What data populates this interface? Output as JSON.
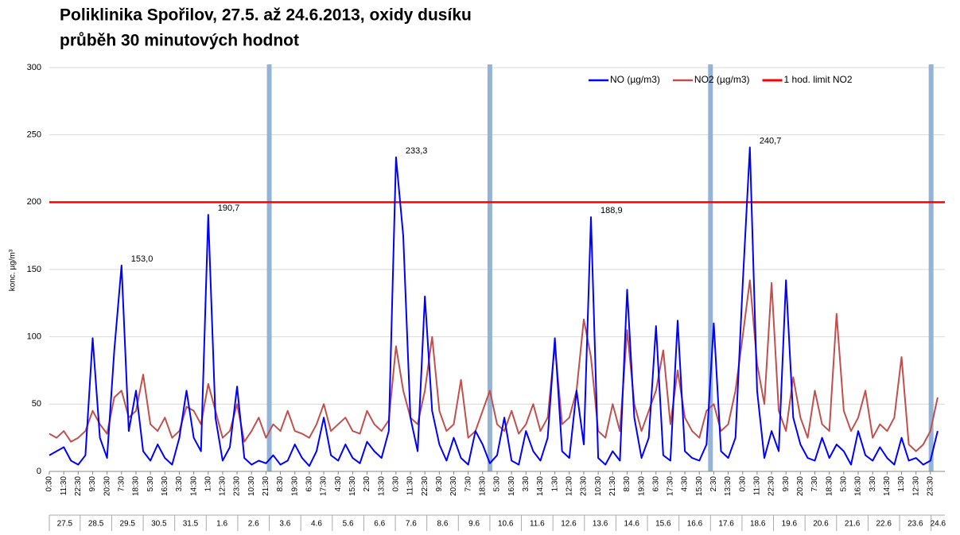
{
  "chart_data": {
    "type": "line",
    "title": "Poliklinika Spořilov, 27.5. až 24.6.2013, oxidy dusíku",
    "subtitle": "průběh 30 minutových hodnot",
    "y_label": "konc. µg/m³",
    "categories": [
      "0:30",
      null,
      "11:30",
      null,
      "22:30",
      null,
      "9:30",
      null,
      "20:30",
      null,
      "7:30",
      null,
      "18:30",
      null,
      "5:30",
      null,
      "16:30",
      null,
      "3:30",
      null,
      "14:30",
      null,
      "1:30",
      null,
      "12:30",
      null,
      "23:30",
      null,
      "10:30",
      null,
      "21:30",
      null,
      "8:30",
      null,
      "19:30",
      null,
      "6:30",
      null,
      "17:30",
      null,
      "4:30",
      null,
      "15:30",
      null,
      "2:30",
      null,
      "13:30",
      null,
      "0:30",
      null,
      "11:30",
      null,
      "22:30",
      null,
      "9:30",
      null,
      "20:30",
      null,
      "7:30",
      null,
      "18:30",
      null,
      "5:30",
      null,
      "16:30",
      null,
      "3:30",
      null,
      "14:30",
      null,
      "1:30",
      null,
      "12:30",
      null,
      "23:30",
      null,
      "10:30",
      null,
      "21:30",
      null,
      "8:30",
      null,
      "19:30",
      null,
      "6:30",
      null,
      "17:30",
      null,
      "4:30",
      null,
      "15:30",
      null,
      "2:30",
      null,
      "13:30",
      null,
      "0:30",
      null,
      "11:30",
      null,
      "22:30",
      null,
      "9:30",
      null,
      "20:30",
      null,
      "7:30",
      null,
      "18:30",
      null,
      "5:30",
      null,
      "16:30",
      null,
      "3:30",
      null,
      "14:30",
      null,
      "1:30",
      null,
      "12:30",
      null,
      "23:30",
      null
    ],
    "dates": [
      "27.5",
      "28.5",
      "29.5",
      "30.5",
      "31.5",
      "1.6",
      "2.6",
      "3.6",
      "4.6",
      "5.6",
      "6.6",
      "7.6",
      "8.6",
      "9.6",
      "10.6",
      "11.6",
      "12.6",
      "13.6",
      "14.6",
      "15.6",
      "16.6",
      "17.6",
      "18.6",
      "19.6",
      "20.6",
      "21.6",
      "22.6",
      "23.6",
      "24.6"
    ],
    "series": [
      {
        "name": "NO (µg/m3)",
        "color": "#0000ff",
        "values": [
          12,
          15,
          18,
          8,
          5,
          12,
          99,
          25,
          10,
          90,
          153,
          30,
          60,
          15,
          8,
          20,
          10,
          5,
          25,
          60,
          25,
          15,
          190.7,
          40,
          8,
          18,
          63,
          10,
          5,
          8,
          6,
          12,
          5,
          8,
          20,
          10,
          4,
          15,
          40,
          12,
          8,
          20,
          10,
          6,
          22,
          15,
          10,
          30,
          233.3,
          175,
          40,
          15,
          130,
          45,
          20,
          8,
          25,
          10,
          5,
          30,
          20,
          6,
          12,
          40,
          8,
          5,
          30,
          15,
          8,
          25,
          99,
          15,
          10,
          60,
          20,
          188.9,
          10,
          5,
          15,
          8,
          135,
          40,
          10,
          25,
          108,
          12,
          8,
          112,
          15,
          10,
          8,
          20,
          110,
          15,
          10,
          25,
          138,
          240.7,
          60,
          10,
          30,
          15,
          142,
          40,
          20,
          10,
          8,
          25,
          10,
          20,
          15,
          5,
          30,
          12,
          8,
          18,
          10,
          5,
          25,
          8,
          10,
          5,
          8,
          30
        ],
        "value_labels": [
          null,
          null,
          null,
          null,
          null,
          null,
          null,
          null,
          null,
          null,
          "153,0",
          null,
          null,
          null,
          null,
          null,
          null,
          null,
          null,
          null,
          null,
          null,
          "190,7",
          null,
          null,
          null,
          null,
          null,
          null,
          null,
          null,
          null,
          null,
          null,
          null,
          null,
          null,
          null,
          null,
          null,
          null,
          null,
          null,
          null,
          null,
          null,
          null,
          null,
          "233,3",
          null,
          null,
          null,
          null,
          null,
          null,
          null,
          null,
          null,
          null,
          null,
          null,
          null,
          null,
          null,
          null,
          null,
          null,
          null,
          null,
          null,
          null,
          null,
          null,
          null,
          null,
          "188,9",
          null,
          null,
          null,
          null,
          null,
          null,
          null,
          null,
          null,
          null,
          null,
          null,
          null,
          null,
          null,
          null,
          null,
          null,
          null,
          null,
          null,
          "240,7",
          null,
          null,
          null,
          null,
          null,
          null,
          null,
          null,
          null,
          null,
          null,
          null,
          null,
          null,
          null,
          null,
          null,
          null,
          null,
          null,
          null,
          null,
          null,
          null,
          null,
          null
        ]
      },
      {
        "name": "NO2 (µg/m3)",
        "color": "#c0504d",
        "values": [
          28,
          25,
          30,
          22,
          25,
          30,
          45,
          35,
          28,
          55,
          60,
          40,
          45,
          72,
          35,
          30,
          40,
          25,
          30,
          48,
          45,
          35,
          65,
          45,
          25,
          30,
          50,
          22,
          30,
          40,
          25,
          35,
          30,
          45,
          30,
          28,
          25,
          35,
          50,
          30,
          35,
          40,
          30,
          28,
          45,
          35,
          30,
          38,
          93,
          60,
          40,
          35,
          60,
          100,
          45,
          30,
          35,
          68,
          25,
          30,
          45,
          60,
          35,
          30,
          45,
          28,
          35,
          50,
          30,
          40,
          94,
          35,
          40,
          60,
          113,
          85,
          30,
          25,
          50,
          30,
          105,
          50,
          30,
          45,
          60,
          90,
          35,
          75,
          40,
          30,
          25,
          45,
          50,
          30,
          35,
          60,
          100,
          142,
          80,
          50,
          140,
          45,
          30,
          70,
          40,
          25,
          60,
          35,
          30,
          117,
          45,
          30,
          40,
          60,
          25,
          35,
          30,
          40,
          85,
          20,
          15,
          20,
          30,
          55
        ]
      }
    ],
    "reference_line": {
      "name": "1 hod. limit NO2",
      "value": 200,
      "color": "#ff0000"
    },
    "ylim": [
      0,
      300
    ],
    "yticks": [
      0,
      50,
      100,
      150,
      200,
      250,
      300
    ],
    "grid": true,
    "legend": "top-right"
  }
}
